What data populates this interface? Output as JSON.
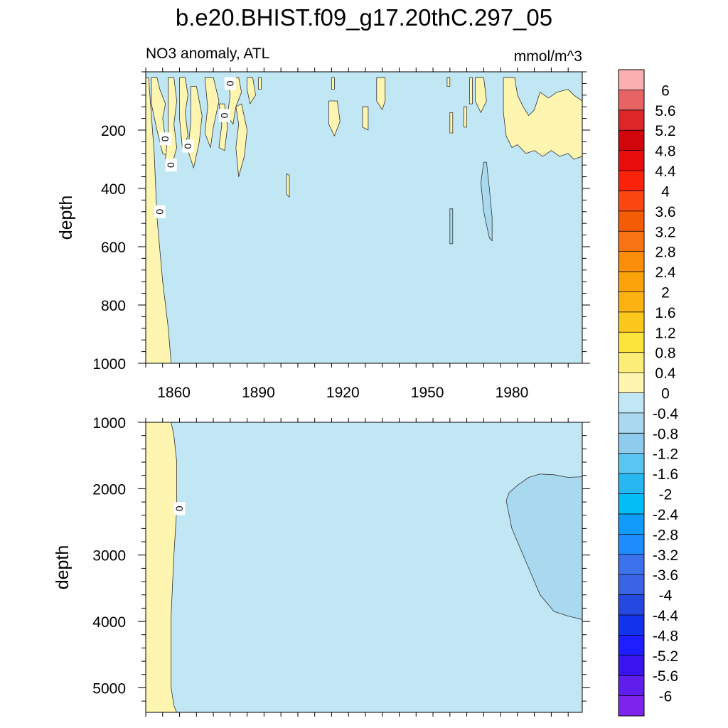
{
  "figure": {
    "title": "b.e20.BHIST.f09_g17.20thC.297_05",
    "subtitle_left": "NO3 anomaly, ATL",
    "subtitle_right": "mmol/m^3"
  },
  "chart_data": [
    {
      "type": "heatmap",
      "panel": "upper",
      "title": "NO3 anomaly, ATL",
      "units": "mmol/m^3",
      "xlabel": "",
      "ylabel": "depth",
      "xlim": [
        1850,
        2005
      ],
      "ylim": [
        1000,
        0
      ],
      "x_ticks": [
        1860,
        1890,
        1920,
        1950,
        1980
      ],
      "x_tick_labels": [
        "1860",
        "1890",
        "1920",
        "1950",
        "1980"
      ],
      "y_ticks": [
        200,
        400,
        600,
        800,
        1000
      ],
      "y_tick_labels": [
        "200",
        "400",
        "600",
        "800",
        "1000"
      ],
      "background_level": "-0.4 to 0",
      "contour_label": "0",
      "contour_label_points": [
        {
          "x": 1880,
          "y": 40
        },
        {
          "x": 1878,
          "y": 150
        },
        {
          "x": 1857,
          "y": 230
        },
        {
          "x": 1865,
          "y": 255
        },
        {
          "x": 1859,
          "y": 320
        },
        {
          "x": 1855,
          "y": 480
        }
      ],
      "positive_regions": [
        {
          "level": "0 to 0.4",
          "polygon": [
            [
              1850,
              20
            ],
            [
              1851,
              20
            ],
            [
              1853,
              280
            ],
            [
              1854,
              500
            ],
            [
              1856,
              720
            ],
            [
              1858,
              880
            ],
            [
              1859,
              1000
            ],
            [
              1850,
              1000
            ]
          ]
        },
        {
          "level": "0 to 0.4",
          "polygon": [
            [
              1852,
              20
            ],
            [
              1854,
              20
            ],
            [
              1855,
              60
            ],
            [
              1857,
              110
            ],
            [
              1856,
              160
            ],
            [
              1857,
              230
            ],
            [
              1858,
              290
            ],
            [
              1856,
              280
            ],
            [
              1854,
              200
            ],
            [
              1852,
              110
            ]
          ]
        },
        {
          "level": "0 to 0.4",
          "polygon": [
            [
              1858,
              20
            ],
            [
              1860,
              20
            ],
            [
              1861,
              100
            ],
            [
              1860,
              180
            ],
            [
              1861,
              260
            ],
            [
              1859,
              330
            ],
            [
              1857,
              300
            ],
            [
              1858,
              200
            ]
          ]
        },
        {
          "level": "0 to 0.4",
          "polygon": [
            [
              1862,
              20
            ],
            [
              1864,
              20
            ],
            [
              1865,
              80
            ],
            [
              1864,
              140
            ],
            [
              1865,
              220
            ],
            [
              1863,
              260
            ],
            [
              1862,
              160
            ]
          ]
        },
        {
          "level": "0 to 0.4",
          "polygon": [
            [
              1866,
              50
            ],
            [
              1868,
              50
            ],
            [
              1870,
              150
            ],
            [
              1869,
              240
            ],
            [
              1867,
              330
            ],
            [
              1865,
              270
            ],
            [
              1866,
              170
            ]
          ]
        },
        {
          "level": "0 to 0.4",
          "polygon": [
            [
              1871,
              20
            ],
            [
              1874,
              20
            ],
            [
              1876,
              100
            ],
            [
              1874,
              190
            ],
            [
              1873,
              260
            ],
            [
              1871,
              210
            ],
            [
              1872,
              120
            ]
          ]
        },
        {
          "level": "0 to 0.4",
          "polygon": [
            [
              1876,
              110
            ],
            [
              1878,
              110
            ],
            [
              1879,
              190
            ],
            [
              1878,
              270
            ],
            [
              1876,
              260
            ],
            [
              1877,
              180
            ]
          ]
        },
        {
          "level": "0 to 0.4",
          "polygon": [
            [
              1879,
              20
            ],
            [
              1883,
              20
            ],
            [
              1884,
              70
            ],
            [
              1882,
              120
            ],
            [
              1881,
              180
            ],
            [
              1879,
              150
            ],
            [
              1880,
              80
            ]
          ]
        },
        {
          "level": "0 to 0.4",
          "polygon": [
            [
              1882,
              120
            ],
            [
              1884,
              110
            ],
            [
              1886,
              200
            ],
            [
              1885,
              290
            ],
            [
              1883,
              360
            ],
            [
              1882,
              260
            ],
            [
              1883,
              180
            ]
          ]
        },
        {
          "level": "0 to 0.4",
          "polygon": [
            [
              1886,
              20
            ],
            [
              1888,
              20
            ],
            [
              1889,
              80
            ],
            [
              1887,
              110
            ],
            [
              1886,
              60
            ]
          ]
        },
        {
          "level": "0 to 0.4",
          "polygon": [
            [
              1890,
              20
            ],
            [
              1891,
              20
            ],
            [
              1891,
              60
            ],
            [
              1890,
              60
            ]
          ]
        },
        {
          "level": "0 to 0.4",
          "polygon": [
            [
              1900,
              350
            ],
            [
              1901,
              355
            ],
            [
              1901,
              430
            ],
            [
              1900,
              420
            ]
          ]
        },
        {
          "level": "0 to 0.4",
          "polygon": [
            [
              1916,
              20
            ],
            [
              1917,
              20
            ],
            [
              1917,
              60
            ],
            [
              1916,
              60
            ]
          ]
        },
        {
          "level": "0 to 0.4",
          "polygon": [
            [
              1915,
              100
            ],
            [
              1918,
              100
            ],
            [
              1919,
              170
            ],
            [
              1917,
              220
            ],
            [
              1915,
              180
            ]
          ]
        },
        {
          "level": "0 to 0.4",
          "polygon": [
            [
              1927,
              120
            ],
            [
              1929,
              120
            ],
            [
              1929,
              200
            ],
            [
              1927,
              190
            ]
          ]
        },
        {
          "level": "0 to 0.4",
          "polygon": [
            [
              1932,
              20
            ],
            [
              1935,
              20
            ],
            [
              1935,
              100
            ],
            [
              1934,
              130
            ],
            [
              1932,
              100
            ]
          ]
        },
        {
          "level": "0 to 0.4",
          "polygon": [
            [
              1957,
              20
            ],
            [
              1958,
              20
            ],
            [
              1958,
              50
            ],
            [
              1957,
              50
            ]
          ]
        },
        {
          "level": "0 to 0.4",
          "polygon": [
            [
              1958,
              140
            ],
            [
              1959,
              140
            ],
            [
              1959,
              210
            ],
            [
              1958,
              210
            ]
          ]
        },
        {
          "level": "0 to 0.4",
          "polygon": [
            [
              1963,
              120
            ],
            [
              1964,
              120
            ],
            [
              1964,
              190
            ],
            [
              1963,
              190
            ]
          ]
        },
        {
          "level": "0 to 0.4",
          "polygon": [
            [
              1965,
              20
            ],
            [
              1966,
              20
            ],
            [
              1966,
              110
            ],
            [
              1965,
              110
            ]
          ]
        },
        {
          "level": "0 to 0.4",
          "polygon": [
            [
              1967,
              20
            ],
            [
              1970,
              20
            ],
            [
              1971,
              100
            ],
            [
              1969,
              140
            ],
            [
              1967,
              100
            ]
          ]
        },
        {
          "level": "0 to 0.4",
          "polygon": [
            [
              1977,
              20
            ],
            [
              1981,
              20
            ],
            [
              1982,
              80
            ],
            [
              1984,
              120
            ],
            [
              1986,
              150
            ],
            [
              1988,
              130
            ],
            [
              1990,
              70
            ],
            [
              1993,
              90
            ],
            [
              1996,
              70
            ],
            [
              2000,
              60
            ],
            [
              2002,
              80
            ],
            [
              2005,
              100
            ],
            [
              2005,
              290
            ],
            [
              2002,
              300
            ],
            [
              2000,
              280
            ],
            [
              1997,
              290
            ],
            [
              1994,
              270
            ],
            [
              1991,
              290
            ],
            [
              1988,
              270
            ],
            [
              1985,
              280
            ],
            [
              1982,
              250
            ],
            [
              1980,
              260
            ],
            [
              1978,
              220
            ],
            [
              1977,
              140
            ]
          ]
        }
      ],
      "negative_regions": [
        {
          "level": "-0.8 to -0.4",
          "polygon": [
            [
              1970,
              310
            ],
            [
              1971,
              310
            ],
            [
              1972,
              400
            ],
            [
              1973,
              500
            ],
            [
              1973,
              580
            ],
            [
              1972,
              570
            ],
            [
              1970,
              480
            ],
            [
              1969,
              380
            ]
          ]
        },
        {
          "level": "-0.8 to -0.4",
          "polygon": [
            [
              1958,
              470
            ],
            [
              1959,
              470
            ],
            [
              1959,
              590
            ],
            [
              1958,
              590
            ]
          ]
        }
      ]
    },
    {
      "type": "heatmap",
      "panel": "lower",
      "xlabel": "",
      "ylabel": "depth",
      "xlim": [
        1850,
        2005
      ],
      "ylim": [
        5370,
        1000
      ],
      "x_ticks": [
        1860,
        1890,
        1920,
        1950,
        1980
      ],
      "y_ticks": [
        1000,
        2000,
        3000,
        4000,
        5000
      ],
      "y_tick_labels": [
        "1000",
        "2000",
        "3000",
        "4000",
        "5000"
      ],
      "background_level": "-0.4 to 0",
      "contour_label": "0",
      "contour_label_points": [
        {
          "x": 1862,
          "y": 2300
        }
      ],
      "positive_regions": [
        {
          "level": "0 to 0.4",
          "polygon": [
            [
              1850,
              1000
            ],
            [
              1859,
              1000
            ],
            [
              1860,
              1200
            ],
            [
              1861,
              1600
            ],
            [
              1861,
              2300
            ],
            [
              1860,
              3000
            ],
            [
              1859,
              3900
            ],
            [
              1859,
              4500
            ],
            [
              1859,
              5000
            ],
            [
              1860,
              5270
            ],
            [
              1861,
              5370
            ],
            [
              1850,
              5370
            ]
          ]
        }
      ],
      "negative_regions": [
        {
          "level": "-0.8 to -0.4",
          "polygon": [
            [
              2005,
              1820
            ],
            [
              2000,
              1830
            ],
            [
              1995,
              1790
            ],
            [
              1990,
              1780
            ],
            [
              1986,
              1830
            ],
            [
              1982,
              1950
            ],
            [
              1979,
              2060
            ],
            [
              1978,
              2180
            ],
            [
              1980,
              2600
            ],
            [
              1985,
              3100
            ],
            [
              1990,
              3600
            ],
            [
              1995,
              3850
            ],
            [
              2000,
              3920
            ],
            [
              2005,
              3970
            ]
          ]
        }
      ]
    },
    {
      "type": "colorbar",
      "units": "mmol/m^3",
      "levels": [
        "-6",
        "-5.6",
        "-5.2",
        "-4.8",
        "-4.4",
        "-4",
        "-3.6",
        "-3.2",
        "-2.8",
        "-2.4",
        "-2",
        "-1.6",
        "-1.2",
        "-0.8",
        "-0.4",
        "0",
        "0.4",
        "0.8",
        "1.2",
        "1.6",
        "2",
        "2.4",
        "2.8",
        "3.2",
        "3.6",
        "4",
        "4.4",
        "4.8",
        "5.2",
        "5.6",
        "6"
      ],
      "colors_bottom_to_top": [
        "#7f24ec",
        "#5f1eec",
        "#3a14ee",
        "#1e1efe",
        "#1232ec",
        "#2548e0",
        "#3a64e6",
        "#3c72ec",
        "#1e8cfd",
        "#119bfb",
        "#05bdf7",
        "#27b7f3",
        "#5bc5f1",
        "#8fcbec",
        "#a9d9ee",
        "#c1e6f4",
        "#fef6b0",
        "#fdee78",
        "#fde43c",
        "#fcc81e",
        "#fcb312",
        "#fca20a",
        "#fa8e0a",
        "#f87412",
        "#f55c06",
        "#fb4812",
        "#f9220a",
        "#e90c0c",
        "#d0060c",
        "#dc2628",
        "#e86464",
        "#fab0b0"
      ]
    }
  ]
}
